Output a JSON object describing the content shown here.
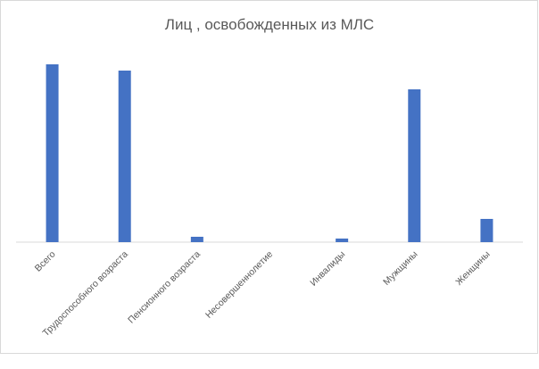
{
  "chart_data": {
    "type": "bar",
    "title": "Лиц , освобожденных из МЛС",
    "categories": [
      "Всего",
      "Трудоспособного возраста",
      "Пенсионного возраста",
      "Несовершеннолетие",
      "Инвалиды",
      "Мужщины",
      "Женщины"
    ],
    "values": [
      199,
      192,
      6,
      0,
      4,
      171,
      26
    ],
    "color": "#4472c4",
    "ylim": [
      0,
      210
    ]
  }
}
